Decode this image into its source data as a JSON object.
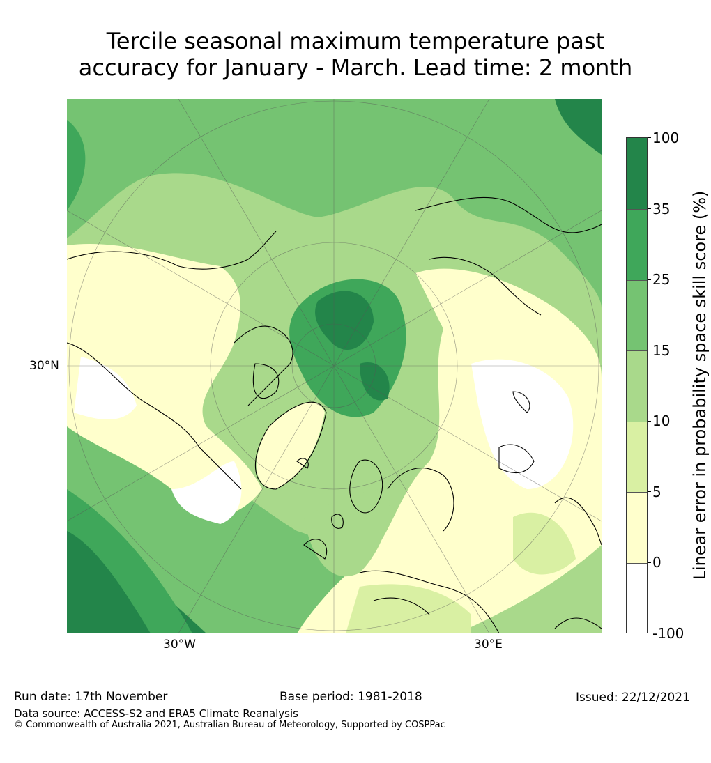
{
  "title": {
    "line1": "Tercile seasonal maximum temperature past",
    "line2": "accuracy for January - March. Lead time: 2 month"
  },
  "map": {
    "projection": "north polar stereographic",
    "lat_label": "30°N",
    "lon_labels": [
      "30°W",
      "30°E"
    ]
  },
  "colorbar": {
    "label": "Linear error in probability space skill score (%)",
    "ticks": [
      "100",
      "35",
      "25",
      "15",
      "10",
      "5",
      "0",
      "-100"
    ],
    "colors": [
      "#23854a",
      "#3fa75a",
      "#75c372",
      "#a9d98b",
      "#d9f0a3",
      "#ffffcc",
      "#ffffff"
    ]
  },
  "footer": {
    "run_date": "Run date: 17th November",
    "base_period": "Base period: 1981-2018",
    "issued": "Issued: 22/12/2021",
    "data_source": "Data source: ACCESS-S2 and ERA5 Climate Reanalysis",
    "copyright": "© Commonwealth of Australia 2021, Australian Bureau of Meteorology, Supported by COSPPac"
  }
}
